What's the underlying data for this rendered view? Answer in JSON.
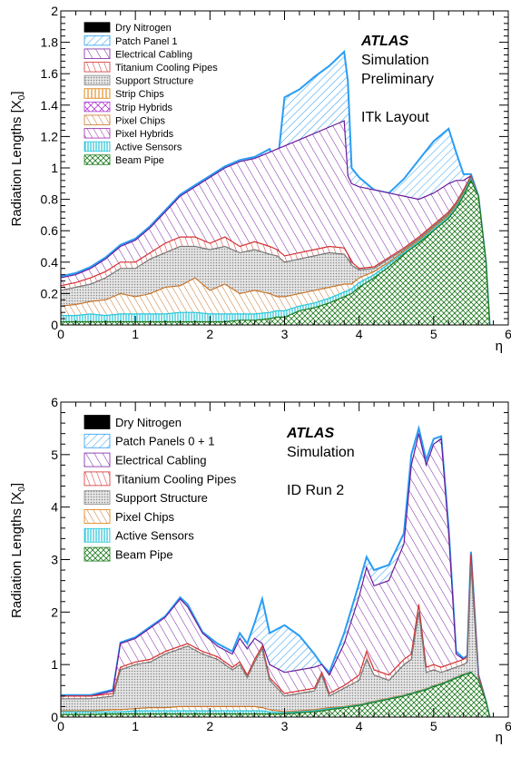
{
  "chart_data": [
    {
      "type": "area",
      "ylabel": "Radiation Lengths [X",
      "ylabel_sub": "0",
      "ylabel_close": "]",
      "xlabel": "η",
      "xlim": [
        0,
        6
      ],
      "ylim": [
        0,
        2
      ],
      "x_ticks": [
        "0",
        "1",
        "2",
        "3",
        "4",
        "5",
        "6"
      ],
      "y_ticks": [
        "0",
        "0.2",
        "0.4",
        "0.6",
        "0.8",
        "1",
        "1.2",
        "1.4",
        "1.6",
        "1.8",
        "2"
      ],
      "y_tick_values": [
        0,
        0.2,
        0.4,
        0.6,
        0.8,
        1,
        1.2,
        1.4,
        1.6,
        1.8,
        2
      ],
      "annotation": {
        "brand": "ATLAS",
        "lines": [
          "Simulation",
          "Preliminary",
          "",
          "ITk Layout"
        ]
      },
      "legend": [
        {
          "label": "Dry Nitrogen",
          "style": "solid",
          "color": "#000000"
        },
        {
          "label": "Patch Panel 1",
          "style": "hatch",
          "color": "#2a9df4"
        },
        {
          "label": "Electrical Cabling",
          "style": "hatch",
          "color": "#7b1fa2"
        },
        {
          "label": "Titanium Cooling Pipes",
          "style": "hatch",
          "color": "#d32f2f"
        },
        {
          "label": "Support Structure",
          "style": "dots",
          "color": "#888888"
        },
        {
          "label": "Strip Chips",
          "style": "vbars",
          "color": "#e07b00"
        },
        {
          "label": "Strip Hybrids",
          "style": "cross",
          "color": "#b03bd0"
        },
        {
          "label": "Pixel Chips",
          "style": "hatch",
          "color": "#c8752a"
        },
        {
          "label": "Pixel Hybrids",
          "style": "hatch",
          "color": "#9c27b0"
        },
        {
          "label": "Active Sensors",
          "style": "vbars",
          "color": "#26c6da"
        },
        {
          "label": "Beam Pipe",
          "style": "xhatch",
          "color": "#1b7a1b"
        }
      ],
      "x": [
        0,
        0.2,
        0.4,
        0.6,
        0.8,
        1.0,
        1.2,
        1.4,
        1.6,
        1.8,
        2.0,
        2.2,
        2.4,
        2.6,
        2.8,
        2.9,
        3.0,
        3.2,
        3.4,
        3.6,
        3.8,
        3.85,
        3.9,
        4.0,
        4.2,
        4.4,
        4.6,
        4.8,
        5.0,
        5.2,
        5.3,
        5.4,
        5.5,
        5.6,
        5.7,
        5.75
      ],
      "series": [
        {
          "name": "Beam Pipe",
          "values": [
            0.02,
            0.02,
            0.02,
            0.02,
            0.02,
            0.02,
            0.02,
            0.02,
            0.02,
            0.02,
            0.02,
            0.02,
            0.03,
            0.03,
            0.04,
            0.05,
            0.05,
            0.09,
            0.11,
            0.14,
            0.18,
            0.19,
            0.2,
            0.24,
            0.3,
            0.37,
            0.45,
            0.52,
            0.6,
            0.68,
            0.74,
            0.82,
            0.92,
            0.82,
            0.4,
            0
          ]
        },
        {
          "name": "Active Sensors",
          "values": [
            0.06,
            0.06,
            0.07,
            0.06,
            0.07,
            0.07,
            0.07,
            0.07,
            0.08,
            0.08,
            0.07,
            0.07,
            0.07,
            0.07,
            0.08,
            0.09,
            0.09,
            0.12,
            0.14,
            0.17,
            0.21,
            0.22,
            0.23,
            0.27,
            0.32,
            0.39,
            0.46,
            0.53,
            0.61,
            0.69,
            0.75,
            0.83,
            0.93,
            0.82,
            0.4,
            0
          ]
        },
        {
          "name": "Pixel Chips",
          "values": [
            0.12,
            0.13,
            0.15,
            0.16,
            0.2,
            0.18,
            0.2,
            0.24,
            0.25,
            0.3,
            0.22,
            0.26,
            0.2,
            0.22,
            0.2,
            0.18,
            0.18,
            0.2,
            0.22,
            0.24,
            0.26,
            0.26,
            0.26,
            0.3,
            0.34,
            0.4,
            0.47,
            0.54,
            0.62,
            0.7,
            0.76,
            0.84,
            0.93,
            0.82,
            0.4,
            0
          ]
        },
        {
          "name": "Support Structure",
          "values": [
            0.22,
            0.24,
            0.26,
            0.3,
            0.36,
            0.36,
            0.42,
            0.46,
            0.5,
            0.5,
            0.48,
            0.5,
            0.46,
            0.48,
            0.45,
            0.44,
            0.4,
            0.42,
            0.44,
            0.46,
            0.45,
            0.42,
            0.38,
            0.35,
            0.36,
            0.42,
            0.48,
            0.55,
            0.63,
            0.71,
            0.77,
            0.85,
            0.94,
            0.82,
            0.4,
            0
          ]
        },
        {
          "name": "Titanium Cooling Pipes",
          "values": [
            0.25,
            0.27,
            0.3,
            0.34,
            0.4,
            0.4,
            0.46,
            0.52,
            0.56,
            0.56,
            0.52,
            0.56,
            0.5,
            0.53,
            0.5,
            0.48,
            0.44,
            0.46,
            0.48,
            0.5,
            0.49,
            0.45,
            0.4,
            0.36,
            0.37,
            0.43,
            0.49,
            0.56,
            0.64,
            0.72,
            0.78,
            0.86,
            0.95,
            0.82,
            0.4,
            0
          ]
        },
        {
          "name": "Electrical Cabling",
          "values": [
            0.3,
            0.32,
            0.36,
            0.42,
            0.5,
            0.54,
            0.62,
            0.72,
            0.82,
            0.88,
            0.94,
            1.0,
            1.04,
            1.06,
            1.1,
            1.12,
            1.14,
            1.18,
            1.22,
            1.26,
            1.3,
            0.95,
            0.9,
            0.88,
            0.86,
            0.84,
            0.82,
            0.8,
            0.84,
            0.9,
            0.92,
            0.92,
            0.95,
            0.82,
            0.4,
            0
          ]
        },
        {
          "name": "Patch Panel 1",
          "values": [
            0.31,
            0.33,
            0.37,
            0.43,
            0.51,
            0.55,
            0.63,
            0.73,
            0.83,
            0.89,
            0.95,
            1.01,
            1.05,
            1.07,
            1.12,
            1.0,
            1.45,
            1.5,
            1.58,
            1.65,
            1.74,
            1.55,
            1.0,
            0.94,
            0.86,
            0.84,
            0.93,
            1.05,
            1.17,
            1.25,
            1.1,
            0.96,
            0.96,
            0.82,
            0.4,
            0
          ]
        }
      ]
    },
    {
      "type": "area",
      "ylabel": "Radiation Lengths [X",
      "ylabel_sub": "0",
      "ylabel_close": "]",
      "xlabel": "η",
      "xlim": [
        0,
        6
      ],
      "ylim": [
        0,
        6
      ],
      "x_ticks": [
        "0",
        "1",
        "2",
        "3",
        "4",
        "5",
        "6"
      ],
      "y_ticks": [
        "0",
        "1",
        "2",
        "3",
        "4",
        "5",
        "6"
      ],
      "y_tick_values": [
        0,
        1,
        2,
        3,
        4,
        5,
        6
      ],
      "annotation": {
        "brand": "ATLAS",
        "lines": [
          "Simulation",
          "",
          "ID Run 2"
        ]
      },
      "legend": [
        {
          "label": "Dry Nitrogen",
          "style": "solid",
          "color": "#000000"
        },
        {
          "label": "Patch Panels 0 + 1",
          "style": "hatch",
          "color": "#2a9df4"
        },
        {
          "label": "Electrical Cabling",
          "style": "hatch",
          "color": "#7b1fa2"
        },
        {
          "label": "Titanium Cooling Pipes",
          "style": "hatch",
          "color": "#d32f2f"
        },
        {
          "label": "Support Structure",
          "style": "dots",
          "color": "#888888"
        },
        {
          "label": "Pixel Chips",
          "style": "vbars",
          "color": "#e07b00"
        },
        {
          "label": "Active Sensors",
          "style": "hlines",
          "color": "#26c6da"
        },
        {
          "label": "Beam Pipe",
          "style": "xhatch",
          "color": "#1b7a1b"
        }
      ],
      "x": [
        0,
        0.4,
        0.7,
        0.8,
        1.0,
        1.2,
        1.4,
        1.6,
        1.7,
        1.9,
        2.1,
        2.3,
        2.4,
        2.5,
        2.6,
        2.7,
        2.8,
        3.0,
        3.2,
        3.4,
        3.5,
        3.6,
        3.8,
        4.0,
        4.1,
        4.2,
        4.4,
        4.6,
        4.7,
        4.8,
        4.9,
        5.0,
        5.1,
        5.2,
        5.3,
        5.4,
        5.45,
        5.5,
        5.6,
        5.7,
        5.75
      ],
      "series": [
        {
          "name": "Beam Pipe",
          "values": [
            0.05,
            0.05,
            0.06,
            0.06,
            0.06,
            0.06,
            0.06,
            0.06,
            0.06,
            0.06,
            0.06,
            0.06,
            0.06,
            0.06,
            0.06,
            0.06,
            0.06,
            0.06,
            0.08,
            0.1,
            0.12,
            0.14,
            0.18,
            0.22,
            0.25,
            0.28,
            0.34,
            0.4,
            0.44,
            0.48,
            0.52,
            0.58,
            0.62,
            0.68,
            0.74,
            0.8,
            0.82,
            0.85,
            0.7,
            0.3,
            0
          ]
        },
        {
          "name": "Active Sensors",
          "values": [
            0.1,
            0.1,
            0.1,
            0.1,
            0.12,
            0.12,
            0.12,
            0.12,
            0.12,
            0.12,
            0.12,
            0.12,
            0.12,
            0.12,
            0.12,
            0.12,
            0.1,
            0.08,
            0.1,
            0.12,
            0.14,
            0.16,
            0.19,
            0.23,
            0.26,
            0.29,
            0.35,
            0.41,
            0.45,
            0.49,
            0.53,
            0.59,
            0.63,
            0.69,
            0.75,
            0.81,
            0.83,
            0.86,
            0.7,
            0.3,
            0
          ]
        },
        {
          "name": "Pixel Chips",
          "values": [
            0.12,
            0.12,
            0.14,
            0.14,
            0.16,
            0.18,
            0.18,
            0.2,
            0.2,
            0.2,
            0.2,
            0.2,
            0.2,
            0.2,
            0.2,
            0.18,
            0.14,
            0.1,
            0.12,
            0.14,
            0.16,
            0.18,
            0.2,
            0.24,
            0.27,
            0.3,
            0.36,
            0.42,
            0.46,
            0.5,
            0.54,
            0.6,
            0.64,
            0.7,
            0.76,
            0.82,
            0.84,
            0.86,
            0.7,
            0.3,
            0
          ]
        },
        {
          "name": "Support Structure",
          "values": [
            0.35,
            0.35,
            0.4,
            0.9,
            1.0,
            1.05,
            1.2,
            1.3,
            1.35,
            1.2,
            1.1,
            0.9,
            1.0,
            0.75,
            1.05,
            1.3,
            0.7,
            0.4,
            0.45,
            0.5,
            0.8,
            0.4,
            0.55,
            0.7,
            1.1,
            0.8,
            0.7,
            1.0,
            1.1,
            2.0,
            0.85,
            0.9,
            0.85,
            0.9,
            0.95,
            1.0,
            1.05,
            2.9,
            0.75,
            0.3,
            0
          ]
        },
        {
          "name": "Titanium Cooling Pipes",
          "values": [
            0.4,
            0.4,
            0.45,
            0.95,
            1.05,
            1.1,
            1.25,
            1.35,
            1.4,
            1.25,
            1.15,
            0.95,
            1.05,
            0.8,
            1.1,
            1.35,
            0.75,
            0.45,
            0.5,
            0.55,
            0.85,
            0.45,
            0.6,
            0.8,
            1.25,
            0.9,
            0.8,
            1.1,
            1.2,
            2.15,
            0.95,
            1.0,
            0.95,
            1.0,
            1.05,
            1.1,
            1.15,
            3.1,
            0.8,
            0.3,
            0
          ]
        },
        {
          "name": "Electrical Cabling",
          "values": [
            0.4,
            0.4,
            0.5,
            1.4,
            1.5,
            1.7,
            1.9,
            2.25,
            2.1,
            1.6,
            1.35,
            1.2,
            1.5,
            1.3,
            1.5,
            1.4,
            1.0,
            0.85,
            0.9,
            0.95,
            1.0,
            0.8,
            1.4,
            2.3,
            2.85,
            2.5,
            2.6,
            3.3,
            4.8,
            5.4,
            4.8,
            5.2,
            5.3,
            3.5,
            1.2,
            1.1,
            1.15,
            3.1,
            0.8,
            0.3,
            0
          ]
        },
        {
          "name": "Patch Panels 0 + 1",
          "values": [
            0.42,
            0.42,
            0.52,
            1.42,
            1.52,
            1.72,
            1.92,
            2.28,
            2.15,
            1.62,
            1.4,
            1.25,
            1.6,
            1.4,
            1.8,
            2.25,
            1.6,
            1.75,
            1.55,
            1.2,
            1.0,
            0.85,
            1.6,
            2.55,
            3.05,
            2.8,
            2.9,
            3.5,
            5.0,
            5.5,
            4.9,
            5.3,
            5.35,
            3.6,
            1.25,
            1.12,
            1.17,
            3.15,
            0.8,
            0.3,
            0
          ]
        }
      ]
    }
  ]
}
